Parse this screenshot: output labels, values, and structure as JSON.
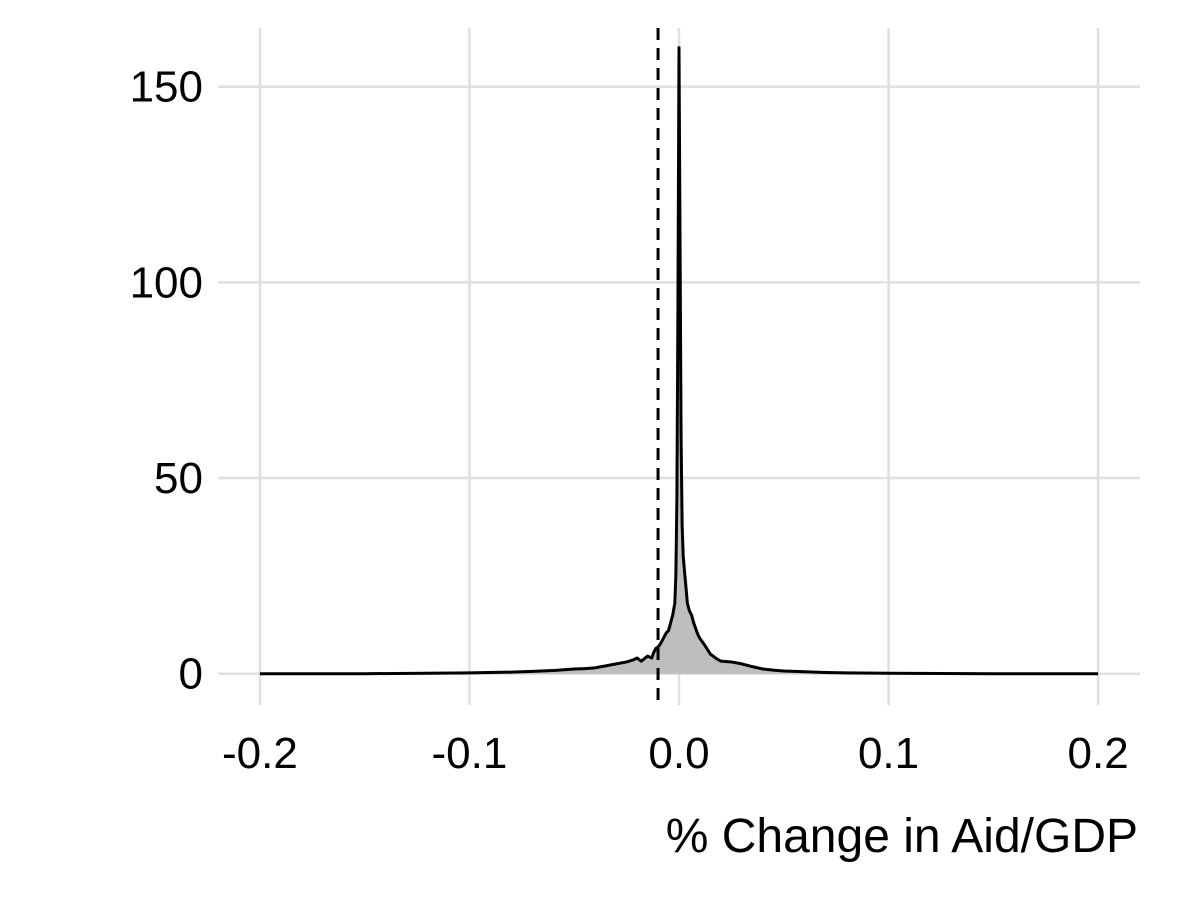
{
  "chart_data": {
    "type": "area",
    "title": "",
    "xlabel": "% Change in Aid/GDP",
    "ylabel": "",
    "xlim": [
      -0.22,
      0.22
    ],
    "ylim": [
      -8,
      165
    ],
    "x_ticks": [
      -0.2,
      -0.1,
      0.0,
      0.1,
      0.2
    ],
    "x_tick_labels": [
      "-0.2",
      "-0.1",
      "0.0",
      "0.1",
      "0.2"
    ],
    "y_ticks": [
      0,
      50,
      100,
      150
    ],
    "y_tick_labels": [
      "0",
      "50",
      "100",
      "150"
    ],
    "grid": true,
    "legend": "none",
    "reference_line": {
      "x": -0.01,
      "style": "dashed"
    },
    "colors": {
      "fill": "#bebebe",
      "line": "#000000",
      "grid": "#e0e0e0"
    },
    "series": [
      {
        "x": [
          -0.2,
          -0.15,
          -0.1,
          -0.08,
          -0.07,
          -0.06,
          -0.055,
          -0.05,
          -0.045,
          -0.04,
          -0.035,
          -0.03,
          -0.025,
          -0.022,
          -0.02,
          -0.018,
          -0.015,
          -0.013,
          -0.012,
          -0.011,
          -0.01,
          -0.009,
          -0.008,
          -0.007,
          -0.006,
          -0.005,
          -0.004,
          -0.003,
          -0.002,
          -0.0015,
          -0.001,
          -0.0005,
          0.0,
          0.0005,
          0.001,
          0.0015,
          0.002,
          0.003,
          0.004,
          0.005,
          0.006,
          0.007,
          0.008,
          0.009,
          0.01,
          0.012,
          0.015,
          0.018,
          0.02,
          0.025,
          0.03,
          0.035,
          0.04,
          0.045,
          0.05,
          0.06,
          0.07,
          0.08,
          0.1,
          0.15,
          0.2
        ],
        "y": [
          0,
          0,
          0.2,
          0.4,
          0.6,
          0.8,
          1.0,
          1.2,
          1.3,
          1.5,
          2.0,
          2.5,
          3.0,
          3.5,
          4.0,
          3.2,
          4.5,
          4.0,
          5.5,
          6.5,
          6.8,
          7.5,
          8.5,
          9.5,
          10.5,
          11.0,
          13.0,
          15.0,
          18.0,
          25.0,
          45.0,
          95.0,
          160.0,
          110.0,
          60.0,
          38.0,
          30.0,
          24.0,
          18.0,
          16.0,
          15.0,
          13.0,
          11.5,
          10.0,
          9.0,
          7.5,
          5.0,
          3.8,
          3.2,
          3.0,
          2.5,
          1.8,
          1.2,
          0.9,
          0.7,
          0.5,
          0.3,
          0.2,
          0.1,
          0,
          0
        ]
      }
    ]
  }
}
